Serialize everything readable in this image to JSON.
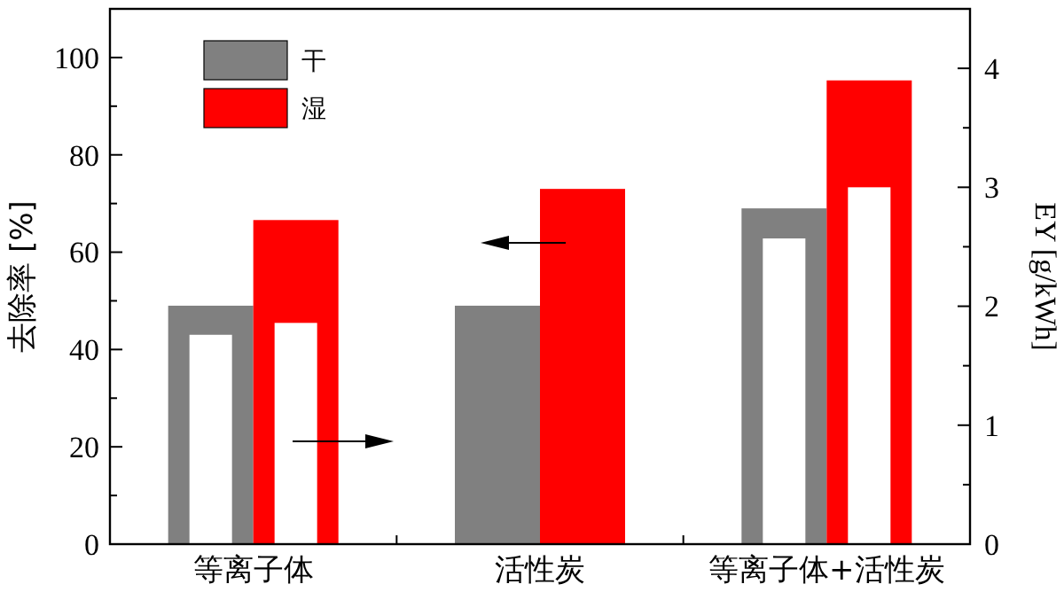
{
  "chart_data": {
    "type": "bar",
    "categories": [
      "等离子体",
      "活性炭",
      "等离子体+活性炭"
    ],
    "ylabel": "去除率 [%]",
    "y2label": "EY [g/kWh]",
    "series": [
      {
        "name": "干",
        "color": "#808080",
        "values": [
          49,
          49,
          69
        ]
      },
      {
        "name": "湿",
        "color": "#ff0000",
        "values": [
          66.6,
          73,
          95.3
        ]
      },
      {
        "type": "bar",
        "axis": "y2",
        "color": "#ffffff",
        "values": [
          1.76,
          null,
          2.57
        ]
      },
      {
        "type": "bar",
        "axis": "y2",
        "color": "#ffffff",
        "values": [
          1.86,
          null,
          3.0
        ]
      }
    ],
    "ylim": [
      0,
      110
    ],
    "yticks": [
      0,
      {
        "value": 10,
        "label": null
      },
      20,
      {
        "value": 30,
        "label": null
      },
      40,
      {
        "value": 50,
        "label": null
      },
      60,
      {
        "value": 70,
        "label": null
      },
      80,
      {
        "value": 90,
        "label": null
      },
      100
    ],
    "y2lim": [
      0,
      4.5
    ],
    "y2ticks": [
      0,
      {
        "value": 0.5,
        "label": null
      },
      1,
      {
        "value": 1.5,
        "label": null
      },
      2,
      {
        "value": 2.5,
        "label": null
      },
      3,
      {
        "value": 3.5,
        "label": null
      },
      4
    ],
    "legend": "top left"
  }
}
